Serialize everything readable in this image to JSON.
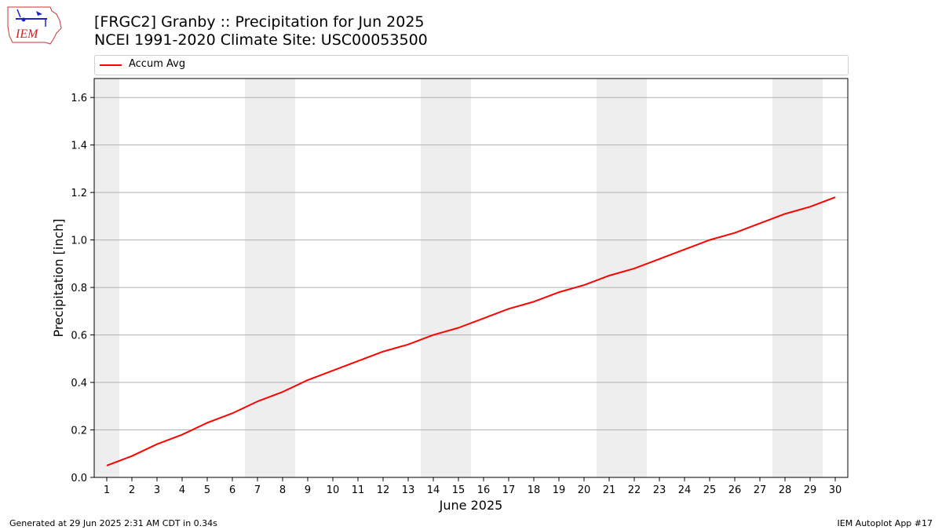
{
  "header": {
    "title_line1": "[FRGC2] Granby :: Precipitation for Jun 2025",
    "title_line2": "NCEI 1991-2020 Climate Site: USC00053500"
  },
  "logo": {
    "text": "IEM"
  },
  "footer": {
    "generated": "Generated at 29 Jun 2025 2:31 AM CDT in 0.34s",
    "app": "IEM Autoplot App #17"
  },
  "chart_data": {
    "type": "line",
    "xlabel": "June 2025",
    "ylabel": "Precipitation [inch]",
    "xlim": [
      0.5,
      30.5
    ],
    "ylim": [
      0.0,
      1.68
    ],
    "yticks": [
      0.0,
      0.2,
      0.4,
      0.6,
      0.8,
      1.0,
      1.2,
      1.4,
      1.6
    ],
    "ytick_labels": [
      "0.0",
      "0.2",
      "0.4",
      "0.6",
      "0.8",
      "1.0",
      "1.2",
      "1.4",
      "1.6"
    ],
    "grid": "horizontal",
    "legend": "top",
    "weekend_shading": [
      [
        0.5,
        1.5
      ],
      [
        6.5,
        8.5
      ],
      [
        13.5,
        15.5
      ],
      [
        20.5,
        22.5
      ],
      [
        27.5,
        29.5
      ]
    ],
    "x": [
      1,
      2,
      3,
      4,
      5,
      6,
      7,
      8,
      9,
      10,
      11,
      12,
      13,
      14,
      15,
      16,
      17,
      18,
      19,
      20,
      21,
      22,
      23,
      24,
      25,
      26,
      27,
      28,
      29,
      30
    ],
    "series": [
      {
        "name": "Accum Avg",
        "color": "#ff0000",
        "values": [
          0.05,
          0.09,
          0.14,
          0.18,
          0.23,
          0.27,
          0.32,
          0.36,
          0.41,
          0.45,
          0.49,
          0.53,
          0.56,
          0.6,
          0.63,
          0.67,
          0.71,
          0.74,
          0.78,
          0.81,
          0.85,
          0.88,
          0.92,
          0.96,
          1.0,
          1.03,
          1.07,
          1.11,
          1.14,
          1.18
        ]
      }
    ]
  }
}
